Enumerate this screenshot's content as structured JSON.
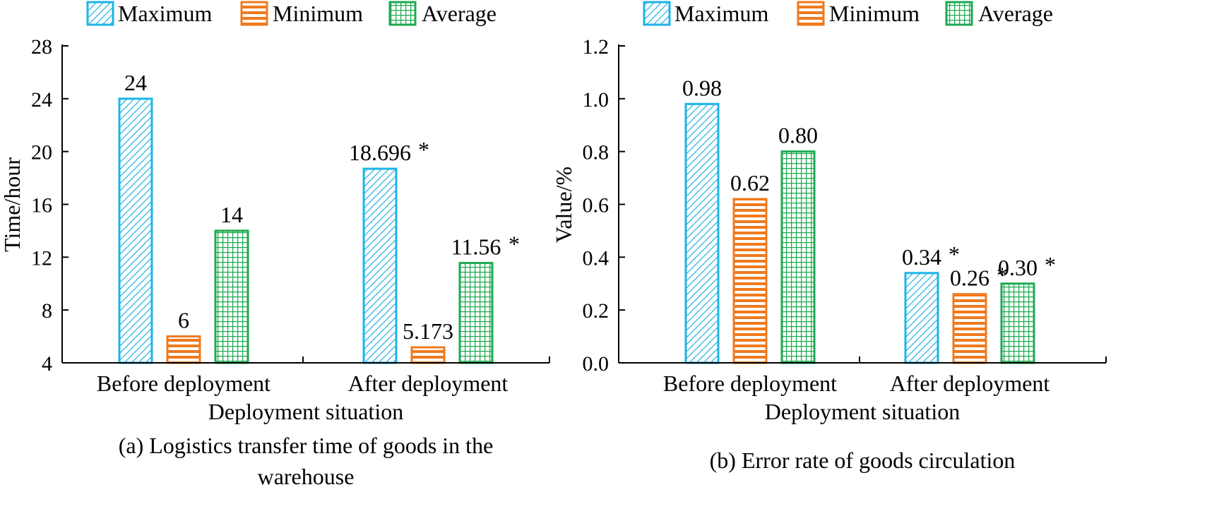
{
  "legend": {
    "entries": [
      {
        "key": "max",
        "label": "Maximum",
        "color": "#1EB4E6",
        "pattern": "diagonal"
      },
      {
        "key": "min",
        "label": "Minimum",
        "color": "#F07A1E",
        "pattern": "horizontal"
      },
      {
        "key": "avg",
        "label": "Average",
        "color": "#1EAA50",
        "pattern": "grid"
      }
    ]
  },
  "chart_data": [
    {
      "type": "bar",
      "title": "(a) Logistics transfer time of goods in the warehouse",
      "title_lines": [
        "(a) Logistics transfer time of goods in the",
        "warehouse"
      ],
      "xlabel": "Deployment situation",
      "ylabel": "Time/hour",
      "ylim": [
        4,
        28
      ],
      "yticks": [
        4,
        8,
        12,
        16,
        20,
        24,
        28
      ],
      "ytick_labels": [
        "4",
        "8",
        "12",
        "16",
        "20",
        "24",
        "28"
      ],
      "categories": [
        "Before deployment",
        "After deployment"
      ],
      "series": [
        {
          "name": "Maximum",
          "values": [
            24,
            18.696
          ],
          "labels": [
            "24",
            "18.696"
          ],
          "star": [
            false,
            true
          ]
        },
        {
          "name": "Minimum",
          "values": [
            6,
            5.173
          ],
          "labels": [
            "6",
            "5.173"
          ],
          "star": [
            false,
            true
          ]
        },
        {
          "name": "Average",
          "values": [
            14,
            11.56
          ],
          "labels": [
            "14",
            "11.56"
          ],
          "star": [
            false,
            true
          ]
        }
      ],
      "grid": false,
      "legend_position": "top"
    },
    {
      "type": "bar",
      "title": "(b) Error rate of goods circulation",
      "title_lines": [
        "(b) Error rate of goods circulation"
      ],
      "xlabel": "Deployment situation",
      "ylabel": "Value/%",
      "ylim": [
        0,
        1.2
      ],
      "yticks": [
        0,
        0.2,
        0.4,
        0.6,
        0.8,
        1.0,
        1.2
      ],
      "ytick_labels": [
        "0.0",
        "0.2",
        "0.4",
        "0.6",
        "0.8",
        "1.0",
        "1.2"
      ],
      "categories": [
        "Before deployment",
        "After deployment"
      ],
      "series": [
        {
          "name": "Maximum",
          "values": [
            0.98,
            0.34
          ],
          "labels": [
            "0.98",
            "0.34"
          ],
          "star": [
            false,
            true
          ]
        },
        {
          "name": "Minimum",
          "values": [
            0.62,
            0.26
          ],
          "labels": [
            "0.62",
            "0.26"
          ],
          "star": [
            false,
            true
          ]
        },
        {
          "name": "Average",
          "values": [
            0.8,
            0.3
          ],
          "labels": [
            "0.80",
            "0.30"
          ],
          "star": [
            false,
            true
          ]
        }
      ],
      "grid": false,
      "legend_position": "top"
    }
  ]
}
